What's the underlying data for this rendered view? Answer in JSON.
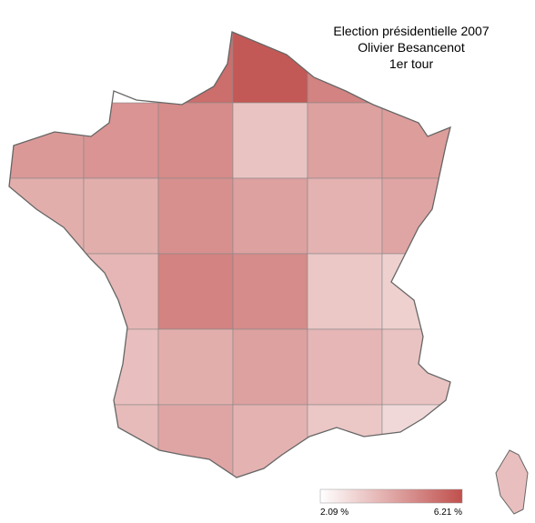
{
  "title": [
    "Election présidentielle 2007",
    "Olivier Besancenot",
    "1er tour"
  ],
  "legend": {
    "min": {
      "value": 2.09,
      "label": "2.09 %"
    },
    "max": {
      "value": 6.21,
      "label": "6.21 %"
    },
    "low_color": "#ffffff",
    "high_color": "#c0504d"
  },
  "regions": [
    5.5,
    6.0,
    5.0,
    4.5,
    4.6,
    4.8,
    3.5,
    4.3,
    4.4,
    4.0,
    4.0,
    4.7,
    4.3,
    3.9,
    4.2,
    3.6,
    3.8,
    5.0,
    4.8,
    3.4,
    3.2,
    3.6,
    4.0,
    4.3,
    3.8,
    3.5,
    3.7,
    4.2,
    3.9,
    3.4,
    3.0,
    3.6
  ]
}
